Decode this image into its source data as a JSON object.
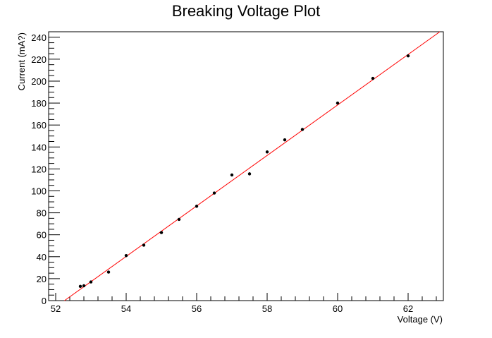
{
  "chart_data": {
    "type": "scatter",
    "title": "Breaking Voltage Plot",
    "xlabel": "Voltage (V)",
    "ylabel": "Current (mA?)",
    "xlim": [
      51.8,
      63.0
    ],
    "ylim": [
      0,
      245
    ],
    "x_ticks": [
      52,
      54,
      56,
      58,
      60,
      62
    ],
    "y_ticks": [
      0,
      20,
      40,
      60,
      80,
      100,
      120,
      140,
      160,
      180,
      200,
      220,
      240
    ],
    "grid": false,
    "legend": "none",
    "series": [
      {
        "marker": "dot",
        "color": "#000000",
        "points": [
          {
            "x": 52.7,
            "y": 13
          },
          {
            "x": 52.8,
            "y": 13.5
          },
          {
            "x": 53.0,
            "y": 17
          },
          {
            "x": 53.5,
            "y": 26
          },
          {
            "x": 54.0,
            "y": 41
          },
          {
            "x": 54.5,
            "y": 50.5
          },
          {
            "x": 55.0,
            "y": 62
          },
          {
            "x": 55.5,
            "y": 74
          },
          {
            "x": 56.0,
            "y": 86
          },
          {
            "x": 56.5,
            "y": 98
          },
          {
            "x": 57.0,
            "y": 114.5
          },
          {
            "x": 57.5,
            "y": 115.5
          },
          {
            "x": 58.0,
            "y": 135.5
          },
          {
            "x": 58.5,
            "y": 146.5
          },
          {
            "x": 59.0,
            "y": 156
          },
          {
            "x": 60.0,
            "y": 180
          },
          {
            "x": 61.0,
            "y": 202.5
          },
          {
            "x": 62.0,
            "y": 223
          }
        ]
      }
    ],
    "fit_line": {
      "color": "#ff0000",
      "from": {
        "x": 52.25,
        "y": 0
      },
      "to": {
        "x": 62.9,
        "y": 245
      }
    }
  }
}
